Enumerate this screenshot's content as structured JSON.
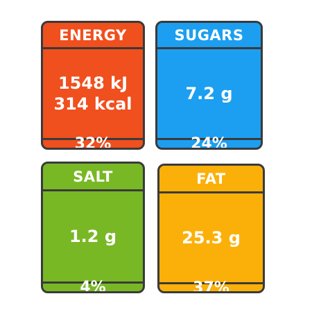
{
  "labels": [
    {
      "id": "energy",
      "title": "ENERGY",
      "value_lines": [
        "1548 kJ",
        "314 kcal"
      ],
      "percent": "32%",
      "color": "#f04f1e"
    },
    {
      "id": "sugars",
      "title": "SUGARS",
      "value_lines": [
        "7.2 g"
      ],
      "percent": "24%",
      "color": "#1c9ff0"
    },
    {
      "id": "salt",
      "title": "SALT",
      "value_lines": [
        "1.2 g"
      ],
      "percent": "4%",
      "color": "#78b825"
    },
    {
      "id": "fat",
      "title": "FAT",
      "value_lines": [
        "25.3 g"
      ],
      "percent": "37%",
      "color": "#fbb009"
    }
  ],
  "border_color": "#3a3a3a",
  "text_color": "#ffffff"
}
